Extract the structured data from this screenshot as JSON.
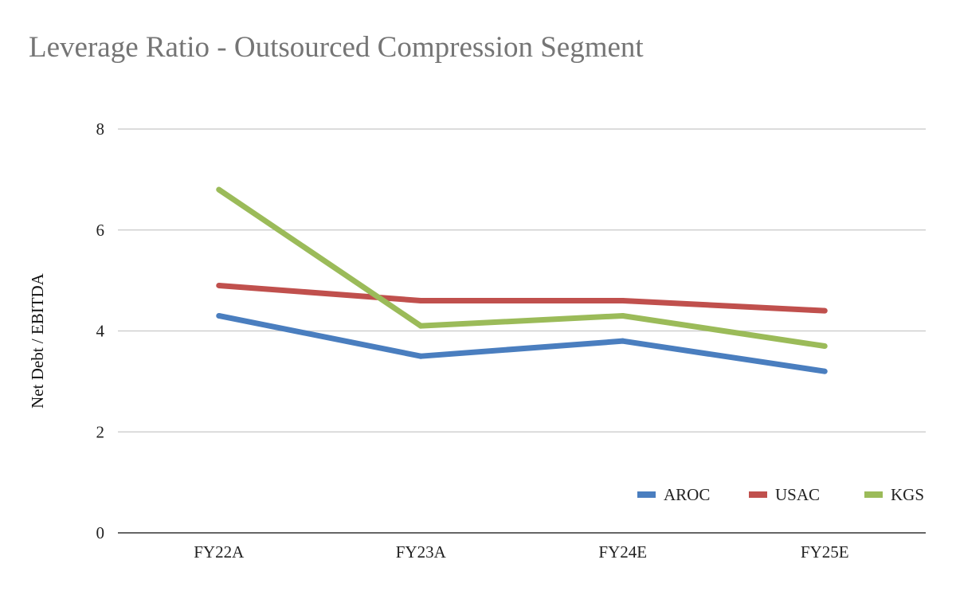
{
  "chart_data": {
    "type": "line",
    "title": "Leverage Ratio - Outsourced Compression Segment",
    "xlabel": "",
    "ylabel": "Net Debt / EBITDA",
    "categories": [
      "FY22A",
      "FY23A",
      "FY24E",
      "FY25E"
    ],
    "ylim": [
      0,
      8
    ],
    "yticks": [
      0,
      2,
      4,
      6,
      8
    ],
    "grid": true,
    "legend_position": "bottom-right",
    "series": [
      {
        "name": "AROC",
        "color": "#4a7ebf",
        "values": [
          4.3,
          3.5,
          3.8,
          3.2
        ]
      },
      {
        "name": "USAC",
        "color": "#c0504d",
        "values": [
          4.9,
          4.6,
          4.6,
          4.4
        ]
      },
      {
        "name": "KGS",
        "color": "#9bbb59",
        "values": [
          6.8,
          4.1,
          4.3,
          3.7
        ]
      }
    ]
  }
}
